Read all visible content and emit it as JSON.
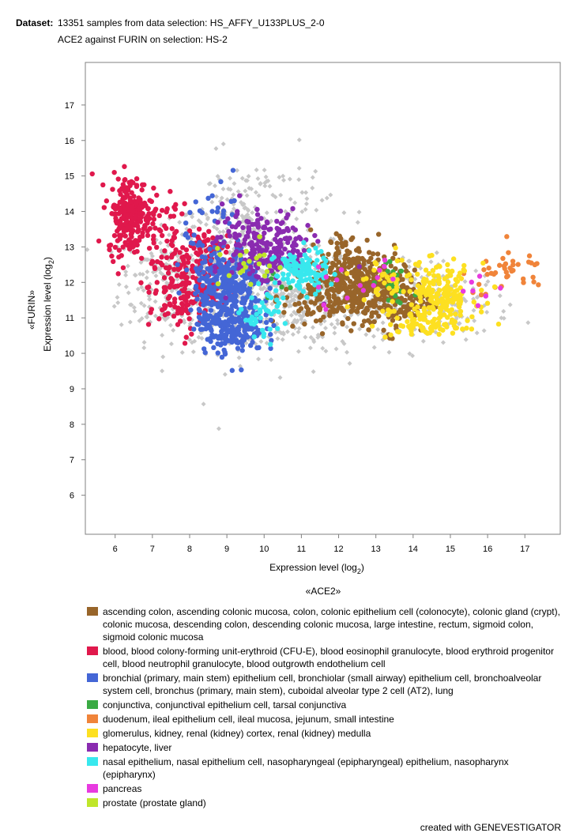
{
  "header": {
    "dataset_label": "Dataset:",
    "dataset_text": "13351 samples from data selection: HS_AFFY_U133PLUS_2-0",
    "subtitle": "ACE2 against FURIN on selection: HS-2"
  },
  "footer": {
    "credit": "created with GENEVESTIGATOR"
  },
  "chart_data": {
    "type": "scatter",
    "title": "ACE2 against FURIN on selection: HS-2",
    "xlabel_main": "Expression level (log",
    "xlabel_sub": "2",
    "xlabel_close": ")",
    "xlabel_gene": "«ACE2»",
    "ylabel_gene": "«FURIN»",
    "ylabel_main": "Expression level (log",
    "ylabel_sub": "2",
    "ylabel_close": ")",
    "xlim": [
      5.2,
      17.95
    ],
    "ylim": [
      4.9,
      18.2
    ],
    "xticks": [
      6,
      7,
      8,
      9,
      10,
      11,
      12,
      13,
      14,
      15,
      16,
      17
    ],
    "yticks": [
      6,
      7,
      8,
      9,
      10,
      11,
      12,
      13,
      14,
      15,
      16,
      17
    ],
    "grid": false,
    "legend_position": "bottom",
    "background_series": {
      "color": "#c8c8c8",
      "marker": "diamond",
      "clusters": [
        {
          "cx": 7.5,
          "cy": 12.0,
          "sx": 0.7,
          "sy": 0.8,
          "n": 220
        },
        {
          "cx": 9.3,
          "cy": 12.3,
          "sx": 0.9,
          "sy": 1.1,
          "n": 380
        },
        {
          "cx": 10.6,
          "cy": 11.6,
          "sx": 0.9,
          "sy": 0.8,
          "n": 260
        },
        {
          "cx": 12.8,
          "cy": 11.6,
          "sx": 1.1,
          "sy": 0.6,
          "n": 180
        },
        {
          "cx": 15.0,
          "cy": 11.4,
          "sx": 0.8,
          "sy": 0.5,
          "n": 100
        },
        {
          "cx": 9.8,
          "cy": 14.2,
          "sx": 1.0,
          "sy": 0.7,
          "n": 90
        }
      ]
    },
    "series": [
      {
        "name": "ascending colon, ascending colonic mucosa, colon, colonic epithelium cell (colonocyte), colonic gland (crypt), colonic mucosa, descending colon, descending colonic mucosa, large intestine, rectum, sigmoid colon, sigmoid colonic mucosa",
        "color": "#98652a",
        "clusters": [
          {
            "cx": 12.6,
            "cy": 11.9,
            "sx": 0.55,
            "sy": 0.5,
            "n": 240
          },
          {
            "cx": 11.5,
            "cy": 11.6,
            "sx": 0.5,
            "sy": 0.45,
            "n": 120
          },
          {
            "cx": 13.6,
            "cy": 11.5,
            "sx": 0.45,
            "sy": 0.45,
            "n": 120
          },
          {
            "cx": 12.2,
            "cy": 12.7,
            "sx": 0.5,
            "sy": 0.4,
            "n": 60
          }
        ]
      },
      {
        "name": "blood, blood colony-forming unit-erythroid (CFU-E), blood eosinophil granulocyte, blood erythroid progenitor cell, blood neutrophil granulocyte, blood outgrowth endothelium cell",
        "color": "#e0184c",
        "clusters": [
          {
            "cx": 6.4,
            "cy": 13.9,
            "sx": 0.3,
            "sy": 0.55,
            "n": 230
          },
          {
            "cx": 7.8,
            "cy": 11.8,
            "sx": 0.45,
            "sy": 0.6,
            "n": 170
          },
          {
            "cx": 8.4,
            "cy": 12.8,
            "sx": 0.35,
            "sy": 0.45,
            "n": 70
          },
          {
            "cx": 7.3,
            "cy": 13.6,
            "sx": 0.4,
            "sy": 0.5,
            "n": 40
          }
        ]
      },
      {
        "name": "bronchial (primary, main stem) epithelium cell, bronchiolar (small airway) epithelium cell, bronchoalveolar system cell, bronchus (primary, main stem), cuboidal alveolar type 2 cell (AT2), lung",
        "color": "#4466d6",
        "clusters": [
          {
            "cx": 9.1,
            "cy": 10.9,
            "sx": 0.45,
            "sy": 0.45,
            "n": 280
          },
          {
            "cx": 9.0,
            "cy": 12.1,
            "sx": 0.45,
            "sy": 0.45,
            "n": 230
          },
          {
            "cx": 8.8,
            "cy": 13.8,
            "sx": 0.45,
            "sy": 0.5,
            "n": 30
          }
        ]
      },
      {
        "name": "conjunctiva, conjunctival epithelium cell, tarsal conjunctiva",
        "color": "#3aaa44",
        "clusters": [
          {
            "cx": 13.5,
            "cy": 11.8,
            "sx": 0.35,
            "sy": 0.3,
            "n": 18
          },
          {
            "cx": 10.6,
            "cy": 12.1,
            "sx": 0.3,
            "sy": 0.3,
            "n": 6
          }
        ]
      },
      {
        "name": "duodenum, ileal epithelium cell, ileal mucosa, jejunum, small intestine",
        "color": "#f0843a",
        "clusters": [
          {
            "cx": 16.7,
            "cy": 12.3,
            "sx": 0.45,
            "sy": 0.3,
            "n": 32
          },
          {
            "cx": 15.8,
            "cy": 12.0,
            "sx": 0.25,
            "sy": 0.3,
            "n": 8
          }
        ]
      },
      {
        "name": "glomerulus, kidney, renal (kidney) cortex, renal (kidney) medulla",
        "color": "#fde021",
        "clusters": [
          {
            "cx": 14.7,
            "cy": 11.6,
            "sx": 0.5,
            "sy": 0.45,
            "n": 190
          },
          {
            "cx": 14.3,
            "cy": 10.8,
            "sx": 0.5,
            "sy": 0.2,
            "n": 50
          },
          {
            "cx": 13.2,
            "cy": 12.0,
            "sx": 0.4,
            "sy": 0.35,
            "n": 40
          }
        ]
      },
      {
        "name": "hepatocyte, liver",
        "color": "#8a2bb0",
        "clusters": [
          {
            "cx": 10.2,
            "cy": 12.9,
            "sx": 0.55,
            "sy": 0.5,
            "n": 200
          },
          {
            "cx": 9.3,
            "cy": 13.4,
            "sx": 0.4,
            "sy": 0.4,
            "n": 40
          }
        ]
      },
      {
        "name": "nasal epithelium, nasal epithelium cell, nasopharyngeal (epipharyngeal) epithelium, nasopharynx (epipharynx)",
        "color": "#38e8ee",
        "clusters": [
          {
            "cx": 11.0,
            "cy": 12.3,
            "sx": 0.35,
            "sy": 0.3,
            "n": 110
          },
          {
            "cx": 10.0,
            "cy": 11.1,
            "sx": 0.3,
            "sy": 0.35,
            "n": 40
          }
        ]
      },
      {
        "name": "pancreas",
        "color": "#e83ae0",
        "clusters": [
          {
            "cx": 12.7,
            "cy": 12.0,
            "sx": 1.2,
            "sy": 0.35,
            "n": 18
          },
          {
            "cx": 15.8,
            "cy": 11.6,
            "sx": 0.25,
            "sy": 0.2,
            "n": 5
          }
        ]
      },
      {
        "name": "prostate (prostate gland)",
        "color": "#bfe62a",
        "clusters": [
          {
            "cx": 9.6,
            "cy": 12.4,
            "sx": 0.4,
            "sy": 0.4,
            "n": 22
          }
        ]
      }
    ]
  }
}
